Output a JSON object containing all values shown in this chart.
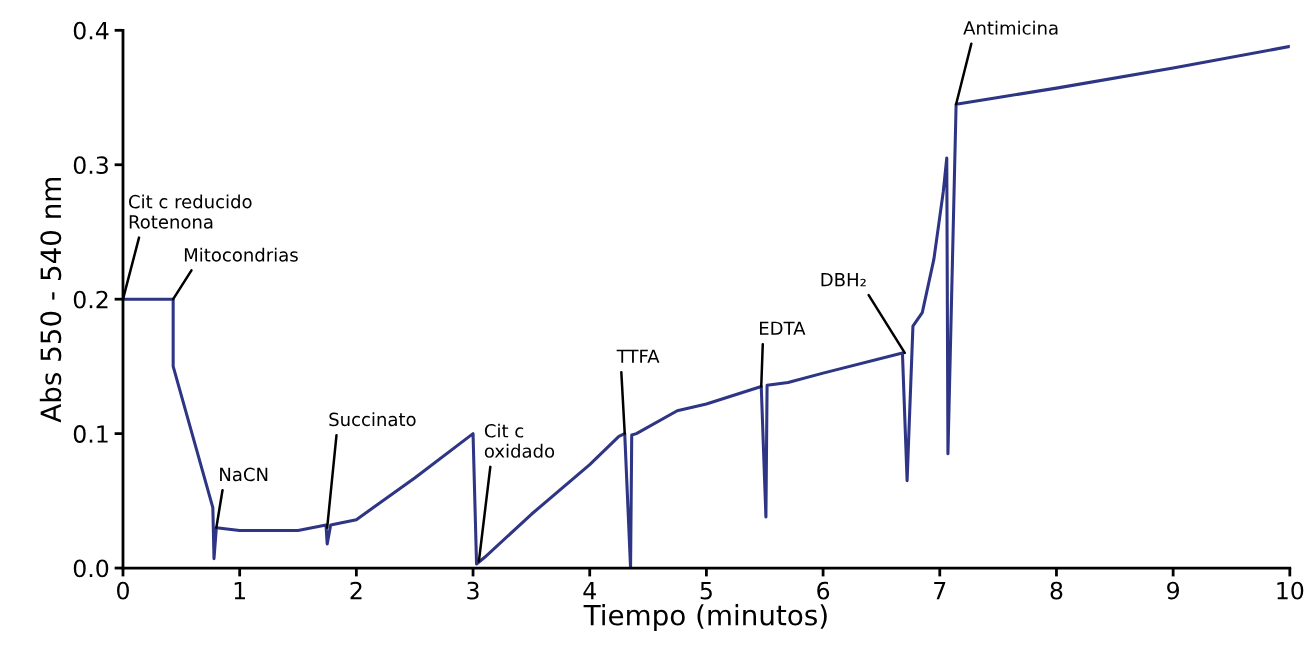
{
  "chart_data": {
    "type": "line",
    "xlabel": "Tiempo (minutos)",
    "ylabel": "Abs 550 - 540 nm",
    "x": [
      0,
      0.43,
      0.43,
      0.77,
      0.78,
      0.8,
      1.0,
      1.5,
      1.74,
      1.75,
      1.78,
      2.0,
      2.5,
      3.0,
      3.03,
      3.1,
      3.5,
      4.0,
      4.25,
      4.3,
      4.35,
      4.36,
      4.4,
      4.75,
      5.0,
      5.47,
      5.51,
      5.52,
      5.7,
      6.0,
      6.68,
      6.72,
      6.77,
      6.85,
      6.95,
      7.03,
      7.06,
      7.07,
      7.14,
      7.5,
      8.0,
      9.0,
      10.0
    ],
    "series": [
      {
        "color": "#2e3584",
        "values": [
          0.2,
          0.2,
          0.15,
          0.045,
          0.007,
          0.03,
          0.028,
          0.028,
          0.032,
          0.018,
          0.032,
          0.036,
          0.067,
          0.1,
          0.003,
          0.008,
          0.04,
          0.077,
          0.098,
          0.1,
          0.0,
          0.099,
          0.1,
          0.117,
          0.122,
          0.135,
          0.038,
          0.136,
          0.138,
          0.145,
          0.16,
          0.065,
          0.18,
          0.19,
          0.23,
          0.28,
          0.305,
          0.085,
          0.345,
          0.35,
          0.357,
          0.372,
          0.388
        ]
      }
    ],
    "xlim": [
      0,
      10
    ],
    "xticks": [
      0,
      1,
      2,
      3,
      4,
      5,
      6,
      7,
      8,
      9,
      10
    ],
    "ylim": [
      0,
      0.4
    ],
    "yticks": [
      {
        "value": 0,
        "label": "0.0"
      },
      0.1,
      0.2,
      0.3,
      0.4
    ],
    "grid": false,
    "marker": "none",
    "line_style": "solid",
    "annotations": [
      {
        "text": "Cit c reducido\nRotenona",
        "x": 0,
        "y": 0.2
      },
      {
        "text": "Mitocondrias",
        "x": 0.43,
        "y": 0.2
      },
      {
        "text": "NaCN",
        "x": 0.8,
        "y": 0.03
      },
      {
        "text": "Succinato",
        "x": 1.75,
        "y": 0.03
      },
      {
        "text": "Cit c\noxidado",
        "x": 3.05,
        "y": 0.005
      },
      {
        "text": "TTFA",
        "x": 4.3,
        "y": 0.1
      },
      {
        "text": "EDTA",
        "x": 5.47,
        "y": 0.135
      },
      {
        "text": "DBH₂",
        "x": 6.7,
        "y": 0.16
      },
      {
        "text": "Antimicina",
        "x": 7.14,
        "y": 0.345
      }
    ]
  }
}
